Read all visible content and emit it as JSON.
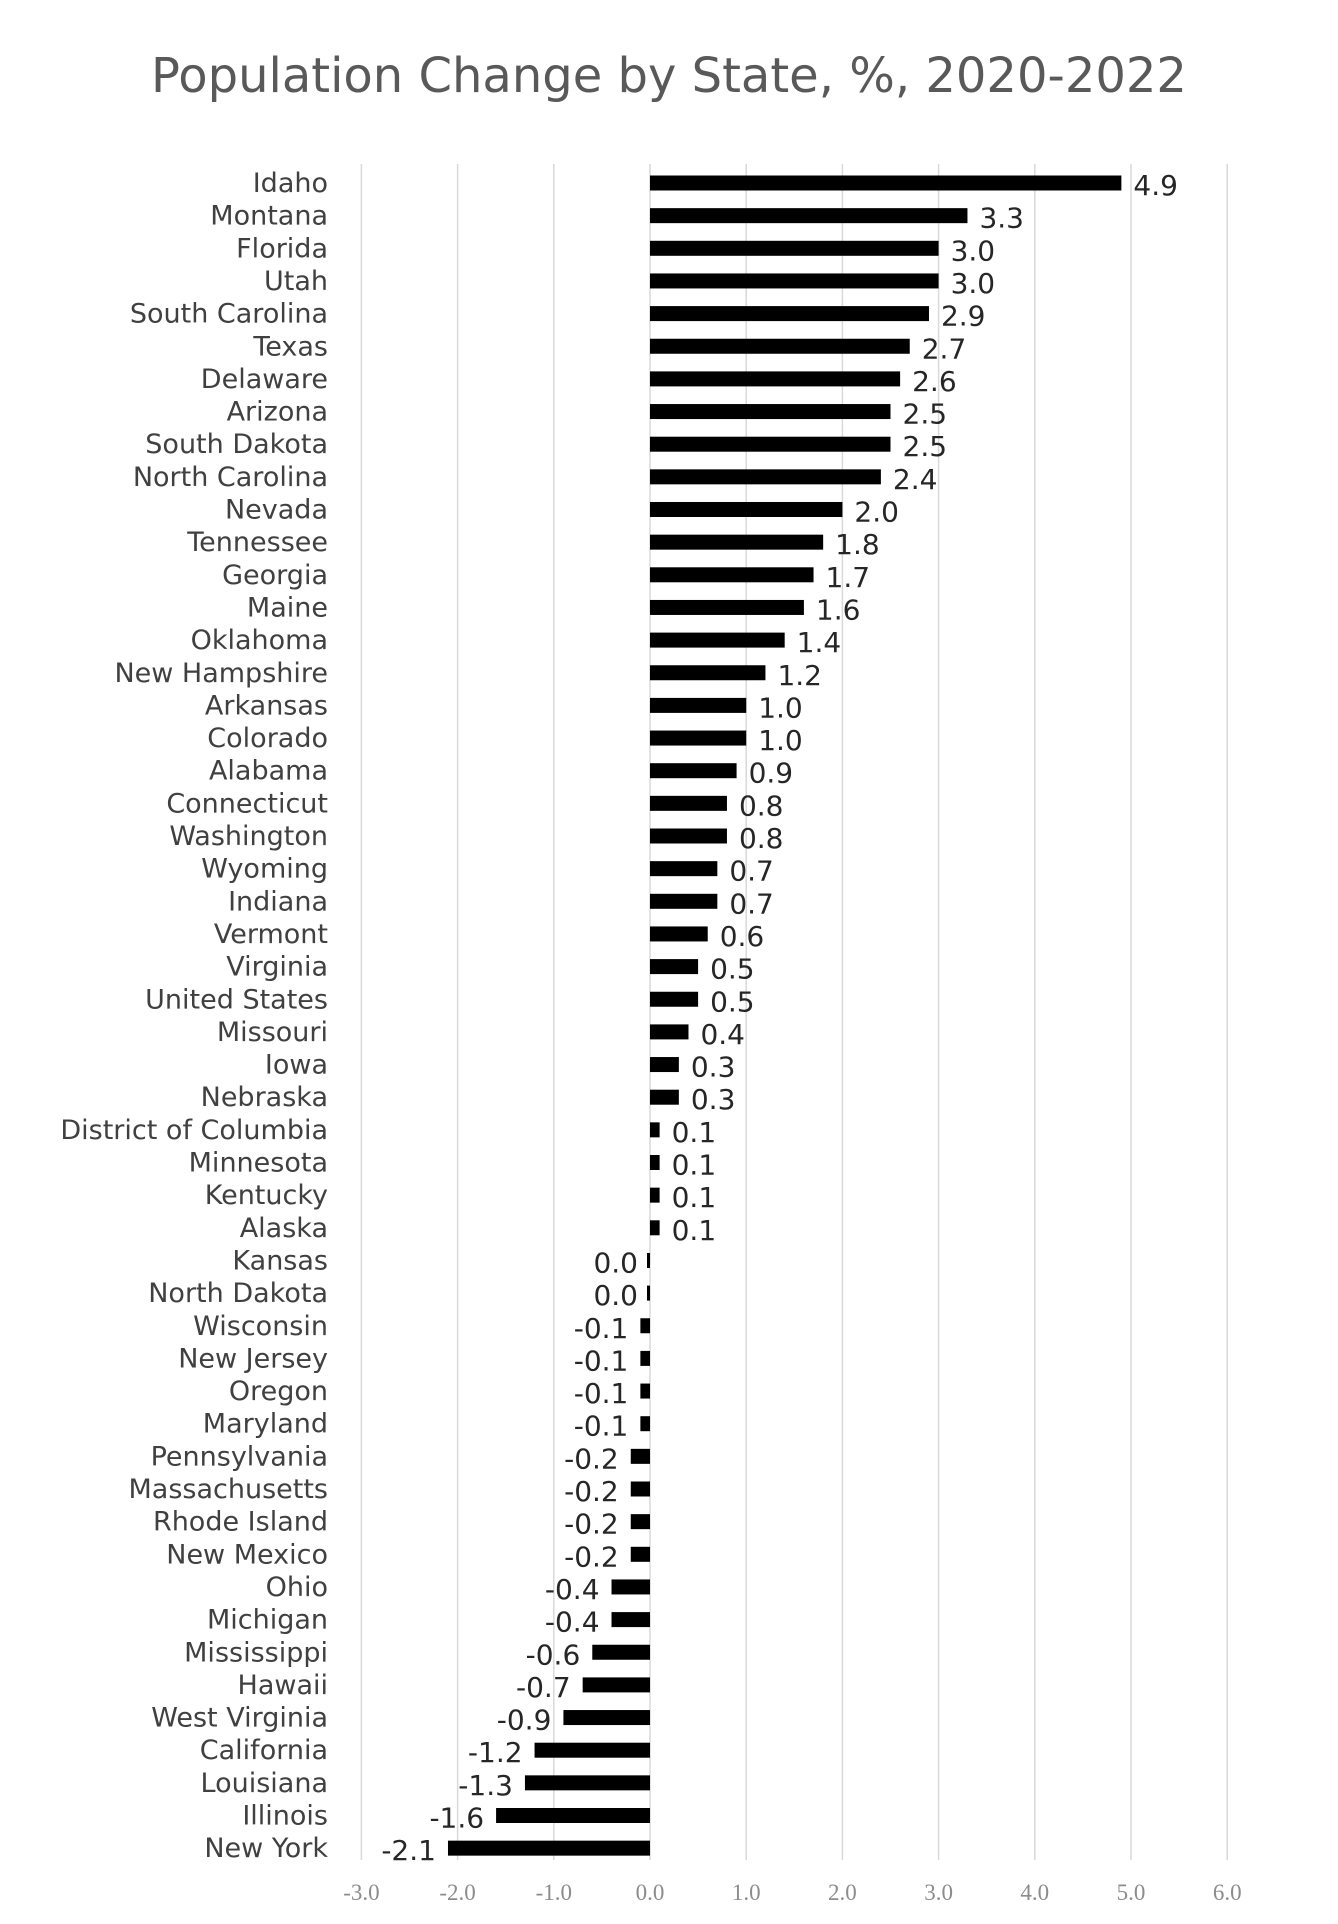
{
  "chart_data": {
    "type": "bar",
    "orientation": "horizontal",
    "title": "Population Change by State, %, 2020-2022",
    "xlabel": "",
    "ylabel": "",
    "xlim": [
      -3.0,
      6.0
    ],
    "xticks": [
      "-3.0",
      "-2.0",
      "-1.0",
      "0.0",
      "1.0",
      "2.0",
      "3.0",
      "4.0",
      "5.0",
      "6.0"
    ],
    "grid": "vertical",
    "bar_color": "#000000",
    "categories": [
      "Idaho",
      "Montana",
      "Florida",
      "Utah",
      "South Carolina",
      "Texas",
      "Delaware",
      "Arizona",
      "South Dakota",
      "North Carolina",
      "Nevada",
      "Tennessee",
      "Georgia",
      "Maine",
      "Oklahoma",
      "New Hampshire",
      "Arkansas",
      "Colorado",
      "Alabama",
      "Connecticut",
      "Washington",
      "Wyoming",
      "Indiana",
      "Vermont",
      "Virginia",
      "United States",
      "Missouri",
      "Iowa",
      "Nebraska",
      "District of Columbia",
      "Minnesota",
      "Kentucky",
      "Alaska",
      "Kansas",
      "North Dakota",
      "Wisconsin",
      "New Jersey",
      "Oregon",
      "Maryland",
      "Pennsylvania",
      "Massachusetts",
      "Rhode Island",
      "New Mexico",
      "Ohio",
      "Michigan",
      "Mississippi",
      "Hawaii",
      "West Virginia",
      "California",
      "Louisiana",
      "Illinois",
      "New York"
    ],
    "values": [
      4.9,
      3.3,
      3.0,
      3.0,
      2.9,
      2.7,
      2.6,
      2.5,
      2.5,
      2.4,
      2.0,
      1.8,
      1.7,
      1.6,
      1.4,
      1.2,
      1.0,
      1.0,
      0.9,
      0.8,
      0.8,
      0.7,
      0.7,
      0.6,
      0.5,
      0.5,
      0.4,
      0.3,
      0.3,
      0.1,
      0.1,
      0.1,
      0.1,
      0.0,
      0.0,
      -0.1,
      -0.1,
      -0.1,
      -0.1,
      -0.2,
      -0.2,
      -0.2,
      -0.2,
      -0.4,
      -0.4,
      -0.6,
      -0.7,
      -0.9,
      -1.2,
      -1.3,
      -1.6,
      -2.1
    ],
    "value_labels": [
      "4.9",
      "3.3",
      "3.0",
      "3.0",
      "2.9",
      "2.7",
      "2.6",
      "2.5",
      "2.5",
      "2.4",
      "2.0",
      "1.8",
      "1.7",
      "1.6",
      "1.4",
      "1.2",
      "1.0",
      "1.0",
      "0.9",
      "0.8",
      "0.8",
      "0.7",
      "0.7",
      "0.6",
      "0.5",
      "0.5",
      "0.4",
      "0.3",
      "0.3",
      "0.1",
      "0.1",
      "0.1",
      "0.1",
      "0.0",
      "0.0",
      "-0.1",
      "-0.1",
      "-0.1",
      "-0.1",
      "-0.2",
      "-0.2",
      "-0.2",
      "-0.2",
      "-0.4",
      "-0.4",
      "-0.6",
      "-0.7",
      "-0.9",
      "-1.2",
      "-1.3",
      "-1.6",
      "-2.1"
    ]
  }
}
